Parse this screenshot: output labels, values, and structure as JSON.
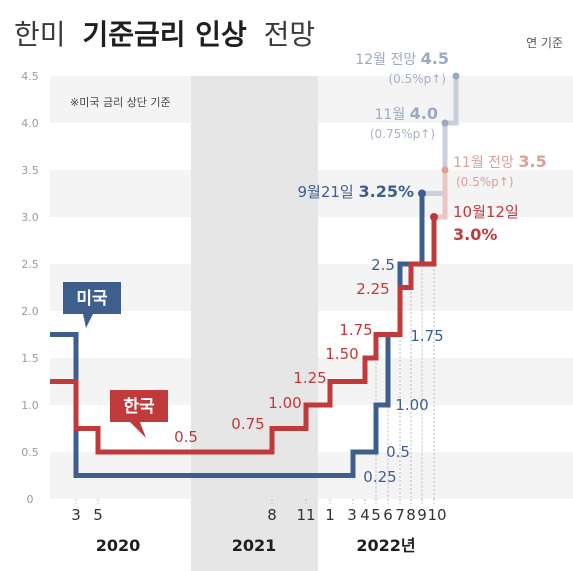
{
  "title": {
    "prefix": "한미",
    "bold": "기준금리 인상",
    "suffix": "전망"
  },
  "basis_label": "연 기준",
  "note": "※미국 금리 상단 기준",
  "chart_data": {
    "type": "line",
    "step": true,
    "ylim": [
      0,
      4.5
    ],
    "yticks": [
      "0",
      "0.5",
      "1.0",
      "1.5",
      "2.0",
      "2.5",
      "3.0",
      "3.5",
      "4.0",
      "4.5"
    ],
    "grid": "alternating horizontal bands",
    "x_ticks": [
      "3",
      "5",
      "8",
      "11",
      "1",
      "3",
      "4",
      "5",
      "6",
      "7",
      "8",
      "9",
      "10"
    ],
    "years": [
      "2020",
      "2021",
      "2022년"
    ],
    "shaded_period": "2021",
    "series": [
      {
        "name": "미국",
        "color": "#3e5f8e",
        "points": [
          {
            "date": "2020-01",
            "value": 1.75
          },
          {
            "date": "2020-03",
            "value": 0.25
          },
          {
            "date": "2022-03",
            "value": 0.5
          },
          {
            "date": "2022-05",
            "value": 1.0
          },
          {
            "date": "2022-06",
            "value": 1.75
          },
          {
            "date": "2022-07",
            "value": 2.5
          },
          {
            "date": "2022-09",
            "value": 3.25
          }
        ],
        "step_labels": [
          "0.25",
          "0.5",
          "1.00",
          "1.75",
          "2.5"
        ],
        "latest": {
          "date": "9월21일",
          "value": "3.25%"
        },
        "projections": [
          {
            "label": "11월",
            "value": "4.0",
            "sub": "(0.75%p↑)"
          },
          {
            "label": "12월 전망",
            "value": "4.5",
            "sub": "(0.5%p↑)"
          }
        ]
      },
      {
        "name": "한국",
        "color": "#c0393b",
        "points": [
          {
            "date": "2020-01",
            "value": 1.25
          },
          {
            "date": "2020-03",
            "value": 0.75
          },
          {
            "date": "2020-05",
            "value": 0.5
          },
          {
            "date": "2021-08",
            "value": 0.75
          },
          {
            "date": "2021-11",
            "value": 1.0
          },
          {
            "date": "2022-01",
            "value": 1.25
          },
          {
            "date": "2022-04",
            "value": 1.5
          },
          {
            "date": "2022-05",
            "value": 1.75
          },
          {
            "date": "2022-07",
            "value": 2.25
          },
          {
            "date": "2022-08",
            "value": 2.5
          },
          {
            "date": "2022-10",
            "value": 3.0
          }
        ],
        "step_labels": [
          "0.5",
          "0.75",
          "1.00",
          "1.25",
          "1.50",
          "1.75",
          "2.25"
        ],
        "latest": {
          "date": "10월12일",
          "value": "3.0%"
        },
        "projections": [
          {
            "label": "11월 전망",
            "value": "3.5",
            "sub": "(0.5%p↑)"
          }
        ]
      }
    ]
  }
}
